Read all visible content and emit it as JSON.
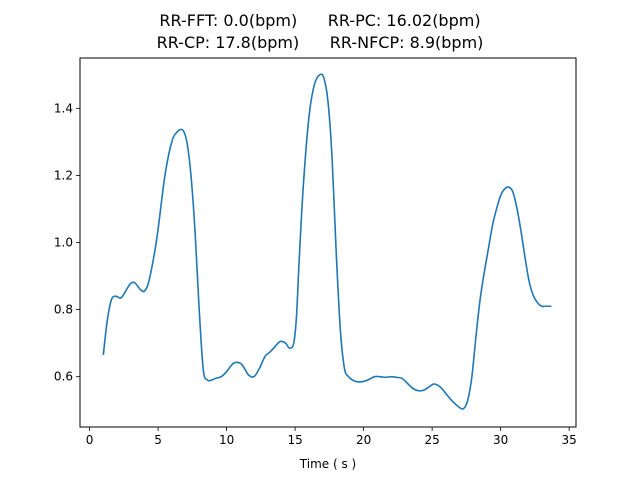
{
  "chart_data": {
    "type": "line",
    "title_lines": [
      "RR-FFT: 0.0(bpm)      RR-PC: 16.02(bpm)",
      "RR-CP: 17.8(bpm)      RR-NFCP: 8.9(bpm)"
    ],
    "xlabel": "Time ( s )",
    "ylabel": "",
    "xlim": [
      -0.7,
      35.5
    ],
    "ylim": [
      0.45,
      1.55
    ],
    "x_ticks": [
      0,
      5,
      10,
      15,
      20,
      25,
      30,
      35
    ],
    "y_ticks": [
      0.6,
      0.8,
      1.0,
      1.2,
      1.4
    ],
    "y_tick_labels": [
      "0.6",
      "0.8",
      "1.0",
      "1.2",
      "1.4"
    ],
    "grid": false,
    "series_color": "#1f77b4",
    "series": [
      {
        "x": [
          1.0,
          1.3,
          1.6,
          1.9,
          2.3,
          2.7,
          3.0,
          3.3,
          3.7,
          4.0,
          4.3,
          4.7,
          5.0,
          5.5,
          6.0,
          6.4,
          6.8,
          7.1,
          7.4,
          7.7,
          8.0,
          8.3,
          8.6,
          8.9,
          9.2,
          9.6,
          10.0,
          10.5,
          11.0,
          11.3,
          11.6,
          12.0,
          12.4,
          12.8,
          13.2,
          13.5,
          13.9,
          14.3,
          14.6,
          14.9,
          15.1,
          15.3,
          15.6,
          16.0,
          16.4,
          16.8,
          17.1,
          17.4,
          17.7,
          18.0,
          18.3,
          18.6,
          18.9,
          19.2,
          19.5,
          19.9,
          20.3,
          20.8,
          21.2,
          21.6,
          22.0,
          22.4,
          22.8,
          23.2,
          23.6,
          24.0,
          24.4,
          24.8,
          25.1,
          25.4,
          25.7,
          26.0,
          26.3,
          26.6,
          27.0,
          27.3,
          27.6,
          27.9,
          28.2,
          28.5,
          28.8,
          29.1,
          29.4,
          29.7,
          30.0,
          30.3,
          30.6,
          30.9,
          31.2,
          31.5,
          31.8,
          32.1,
          32.4,
          32.7,
          33.0,
          33.3,
          33.7
        ],
        "y": [
          0.665,
          0.77,
          0.83,
          0.84,
          0.835,
          0.86,
          0.878,
          0.88,
          0.86,
          0.855,
          0.88,
          0.96,
          1.04,
          1.2,
          1.3,
          1.33,
          1.335,
          1.3,
          1.2,
          1.03,
          0.8,
          0.62,
          0.59,
          0.59,
          0.595,
          0.6,
          0.615,
          0.64,
          0.64,
          0.625,
          0.605,
          0.6,
          0.625,
          0.66,
          0.675,
          0.688,
          0.705,
          0.7,
          0.685,
          0.7,
          0.78,
          0.95,
          1.17,
          1.37,
          1.47,
          1.5,
          1.49,
          1.42,
          1.25,
          0.97,
          0.74,
          0.625,
          0.6,
          0.59,
          0.585,
          0.585,
          0.59,
          0.6,
          0.6,
          0.598,
          0.6,
          0.598,
          0.595,
          0.58,
          0.565,
          0.558,
          0.56,
          0.57,
          0.578,
          0.575,
          0.565,
          0.55,
          0.535,
          0.522,
          0.508,
          0.505,
          0.53,
          0.6,
          0.72,
          0.83,
          0.91,
          0.98,
          1.05,
          1.1,
          1.14,
          1.16,
          1.165,
          1.15,
          1.1,
          1.03,
          0.95,
          0.88,
          0.84,
          0.82,
          0.81,
          0.81,
          0.81
        ]
      }
    ]
  }
}
